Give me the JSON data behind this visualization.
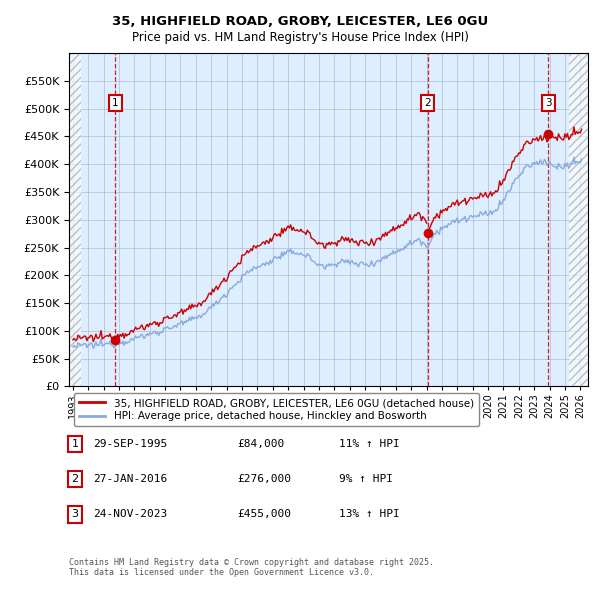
{
  "title_line1": "35, HIGHFIELD ROAD, GROBY, LEICESTER, LE6 0GU",
  "title_line2": "Price paid vs. HM Land Registry's House Price Index (HPI)",
  "sale_prices": [
    84000,
    276000,
    455000
  ],
  "sale_times": [
    1995.75,
    2016.083,
    2023.917
  ],
  "sale_labels": [
    "1",
    "2",
    "3"
  ],
  "sale_info": [
    {
      "label": "1",
      "date": "29-SEP-1995",
      "price": "£84,000",
      "hpi": "11% ↑ HPI"
    },
    {
      "label": "2",
      "date": "27-JAN-2016",
      "price": "£276,000",
      "hpi": "9% ↑ HPI"
    },
    {
      "label": "3",
      "date": "24-NOV-2023",
      "price": "£455,000",
      "hpi": "13% ↑ HPI"
    }
  ],
  "legend_line1": "35, HIGHFIELD ROAD, GROBY, LEICESTER, LE6 0GU (detached house)",
  "legend_line2": "HPI: Average price, detached house, Hinckley and Bosworth",
  "footnote": "Contains HM Land Registry data © Crown copyright and database right 2025.\nThis data is licensed under the Open Government Licence v3.0.",
  "line_color_sale": "#cc0000",
  "line_color_hpi": "#88aadd",
  "ylim_min": 0,
  "ylim_max": 600000,
  "yticks": [
    0,
    50000,
    100000,
    150000,
    200000,
    250000,
    300000,
    350000,
    400000,
    450000,
    500000,
    550000
  ],
  "xlim_start": 1992.75,
  "xlim_end": 2026.5,
  "hatch_left_end": 1993.5,
  "hatch_right_start": 2025.25,
  "grid_color": "#aaaacc",
  "panel_bg": "#ddeeff"
}
